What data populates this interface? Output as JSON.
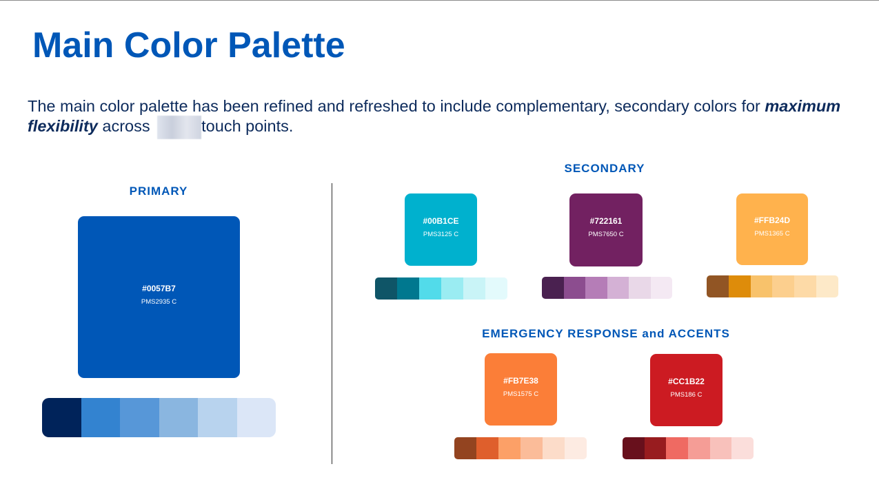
{
  "title": "Main Color Palette",
  "intro": {
    "text_1": "The main color palette has been refined and refreshed to include complementary, secondary colors for ",
    "emphasis": "maximum flexibility",
    "text_2": " across ",
    "text_3": "touch points."
  },
  "sections": {
    "primary": "PRIMARY",
    "secondary": "SECONDARY",
    "emergency": "EMERGENCY RESPONSE and ACCENTS"
  },
  "colors": {
    "primary": {
      "hex": "#0057B7",
      "pms": "PMS2935 C",
      "tints": [
        "#00235a",
        "#3383d0",
        "#5797d8",
        "#8ab6e0",
        "#b8d3ee",
        "#dbe6f7"
      ]
    },
    "secondary_1": {
      "hex": "#00B1CE",
      "pms": "PMS3125 C",
      "tints": [
        "#0f5567",
        "#00788f",
        "#52dbea",
        "#9aecf2",
        "#c9f4f7",
        "#e3fafc"
      ]
    },
    "secondary_2": {
      "hex": "#722161",
      "pms": "PMS7650 C",
      "tints": [
        "#4a2150",
        "#8c4d8f",
        "#b57db7",
        "#d4b1d5",
        "#e9d8e8",
        "#f4e9f3"
      ]
    },
    "secondary_3": {
      "hex": "#FFB24D",
      "pms": "PMS1365 C",
      "tints": [
        "#915524",
        "#de8c0a",
        "#f8c26b",
        "#fccf8e",
        "#fddaa7",
        "#fde9c8"
      ]
    },
    "accent_1": {
      "hex": "#FB7E38",
      "pms": "PMS1575 C",
      "tints": [
        "#934420",
        "#df5f2c",
        "#fca067",
        "#fbbc99",
        "#fcdcc9",
        "#fdebe2"
      ]
    },
    "accent_2": {
      "hex": "#CC1B22",
      "pms": "PMS186 C",
      "tints": [
        "#68101c",
        "#981c1f",
        "#ef6a62",
        "#f59d96",
        "#f8c1bb",
        "#fbdedb"
      ]
    }
  }
}
